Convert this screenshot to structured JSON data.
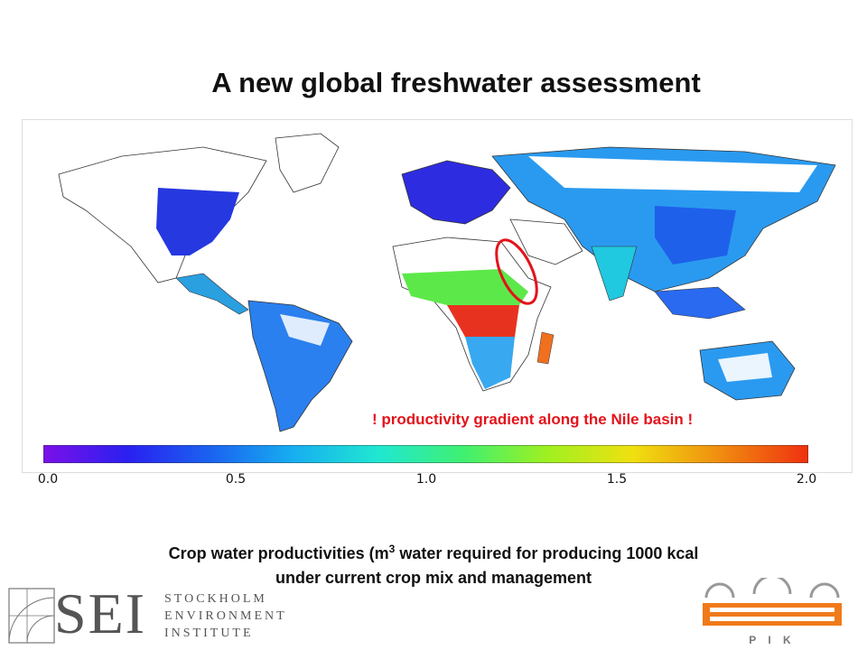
{
  "slide": {
    "title": "A new global freshwater assessment"
  },
  "map": {
    "callout_text": "! productivity gradient along the Nile basin !",
    "highlight_color": "#e3131b",
    "colorbar": {
      "ticks": [
        "0.0",
        "0.5",
        "1.0",
        "1.5",
        "2.0"
      ],
      "min": 0.0,
      "max": 2.0,
      "colors": [
        "#7b10e8",
        "#2a20f0",
        "#1a64f0",
        "#17b0f0",
        "#20e8d0",
        "#40f070",
        "#a0f020",
        "#f0e010",
        "#f09010",
        "#f03010"
      ]
    }
  },
  "caption": {
    "line1_prefix": "Crop water productivities (m",
    "line1_sup": "3",
    "line1_suffix": " water required for producing 1000 kcal",
    "line2": "under current crop mix and management"
  },
  "logos": {
    "sei_letters": "SEI",
    "sei_line1": "STOCKHOLM",
    "sei_line2": "ENVIRONMENT",
    "sei_line3": "INSTITUTE",
    "pik_text": "P I K"
  }
}
